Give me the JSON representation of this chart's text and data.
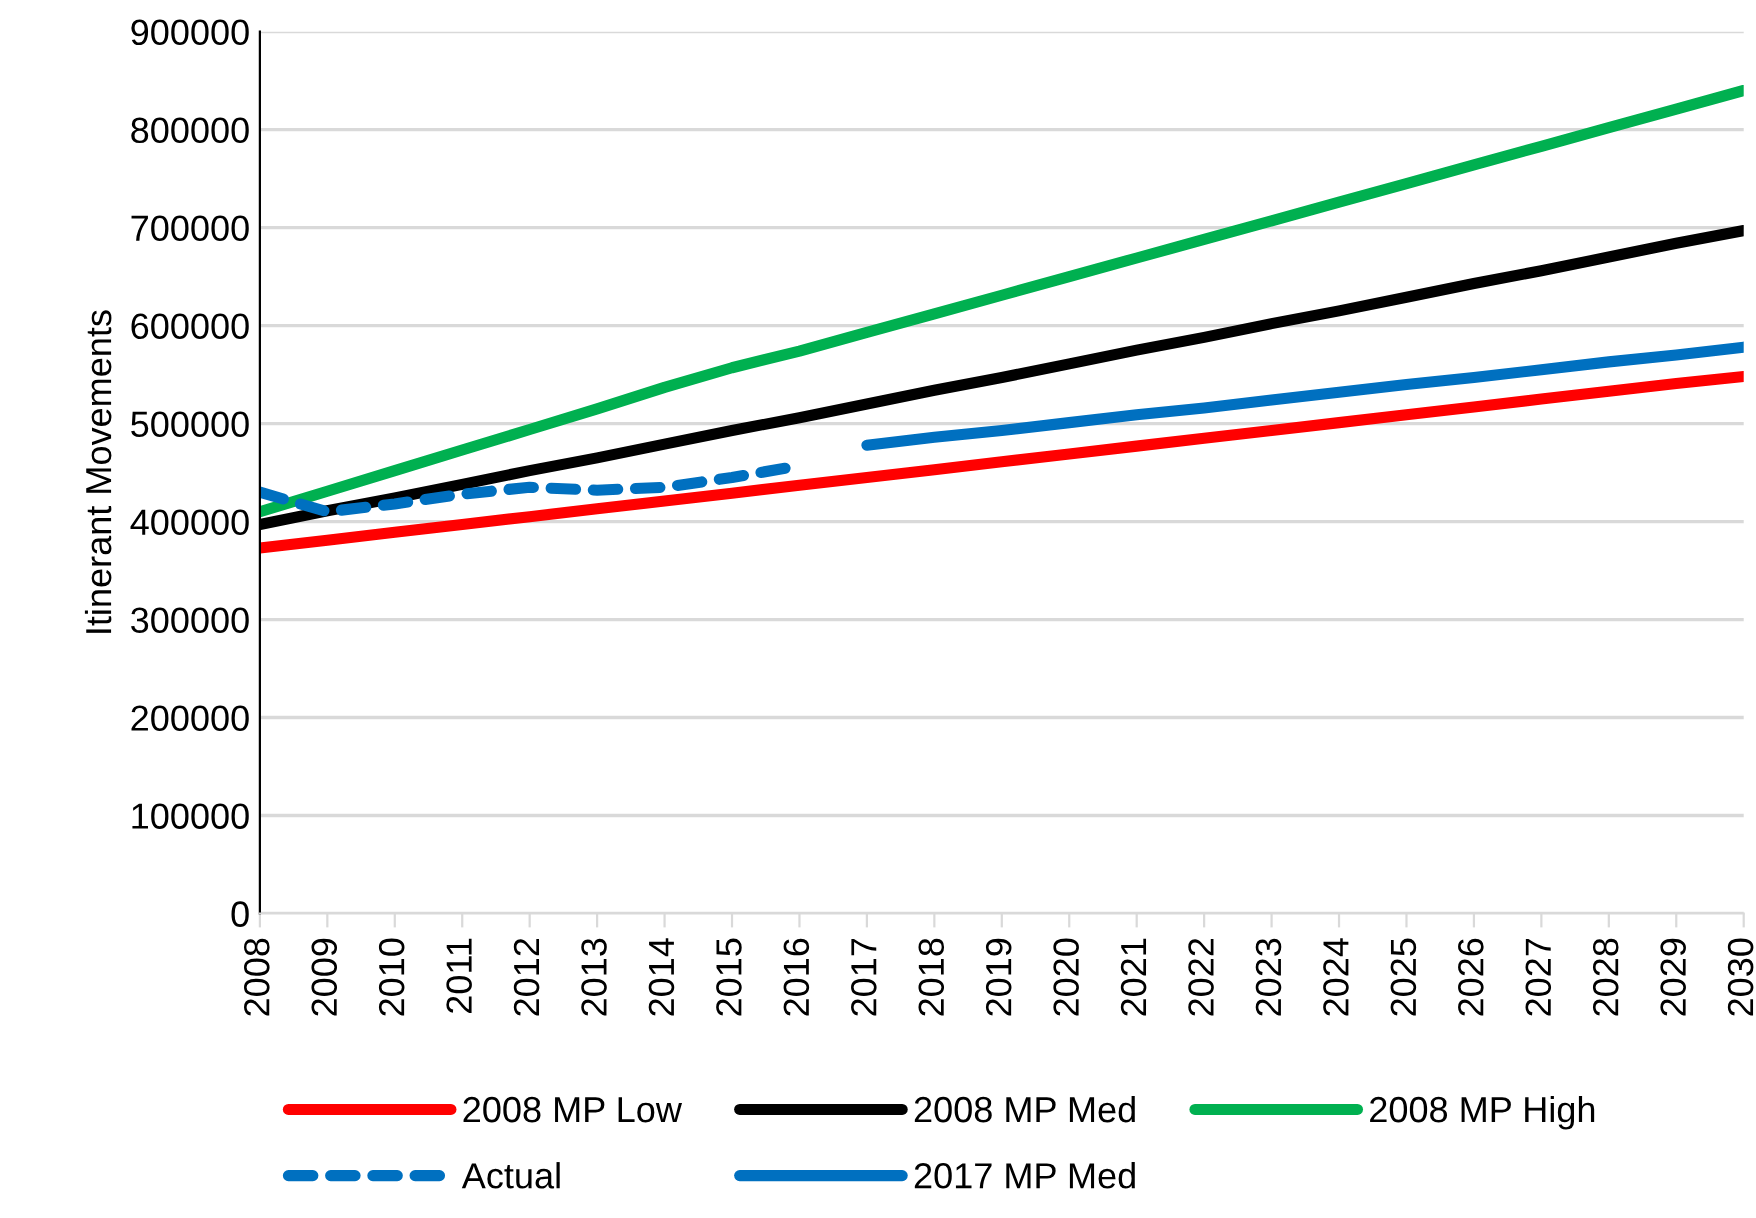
{
  "chart_data": {
    "type": "line",
    "ylabel": "Itinerant Movements",
    "categories": [
      "2008",
      "2009",
      "2010",
      "2011",
      "2012",
      "2013",
      "2014",
      "2015",
      "2016",
      "2017",
      "2018",
      "2019",
      "2020",
      "2021",
      "2022",
      "2023",
      "2024",
      "2025",
      "2026",
      "2027",
      "2028",
      "2029",
      "2030"
    ],
    "series": [
      {
        "name": "2008 MP Low",
        "color": "#ff0000",
        "line_style": "solid",
        "values": [
          373000,
          381000,
          389000,
          397000,
          405000,
          413000,
          421000,
          429000,
          437000,
          445000,
          453000,
          461000,
          469000,
          477000,
          485000,
          493000,
          501000,
          509000,
          517000,
          525000,
          533000,
          541000,
          548000
        ]
      },
      {
        "name": "2008 MP Med",
        "color": "#000000",
        "line_style": "solid",
        "values": [
          397000,
          411000,
          424000,
          438000,
          452000,
          465000,
          479000,
          493000,
          506000,
          520000,
          534000,
          547000,
          561000,
          575000,
          588000,
          602000,
          615000,
          629000,
          643000,
          656000,
          670000,
          684000,
          697000
        ]
      },
      {
        "name": "2008 MP High",
        "color": "#00b050",
        "line_style": "solid",
        "values": [
          410000,
          431000,
          452000,
          473000,
          494000,
          515000,
          537000,
          557000,
          574000,
          593000,
          612000,
          631000,
          650000,
          669000,
          688000,
          707000,
          726000,
          745000,
          764000,
          783000,
          802000,
          821000,
          840000
        ]
      },
      {
        "name": "Actual",
        "color": "#0070c0",
        "line_style": "dashed",
        "values": [
          430000,
          410000,
          418000,
          428000,
          435000,
          432000,
          435000,
          445000,
          457000,
          null,
          null,
          null,
          null,
          null,
          null,
          null,
          null,
          null,
          null,
          null,
          null,
          null,
          null
        ]
      },
      {
        "name": "2017 MP Med",
        "color": "#0070c0",
        "line_style": "solid",
        "values": [
          null,
          null,
          null,
          null,
          null,
          null,
          null,
          null,
          null,
          478000,
          486000,
          493000,
          501000,
          509000,
          516000,
          524000,
          532000,
          540000,
          547000,
          555000,
          563000,
          570000,
          578000
        ]
      }
    ],
    "ylim": [
      0,
      900000
    ],
    "yticks": [
      0,
      100000,
      200000,
      300000,
      400000,
      500000,
      600000,
      700000,
      800000,
      900000
    ],
    "grid": "y",
    "legend": "bottom",
    "marker": "none"
  }
}
